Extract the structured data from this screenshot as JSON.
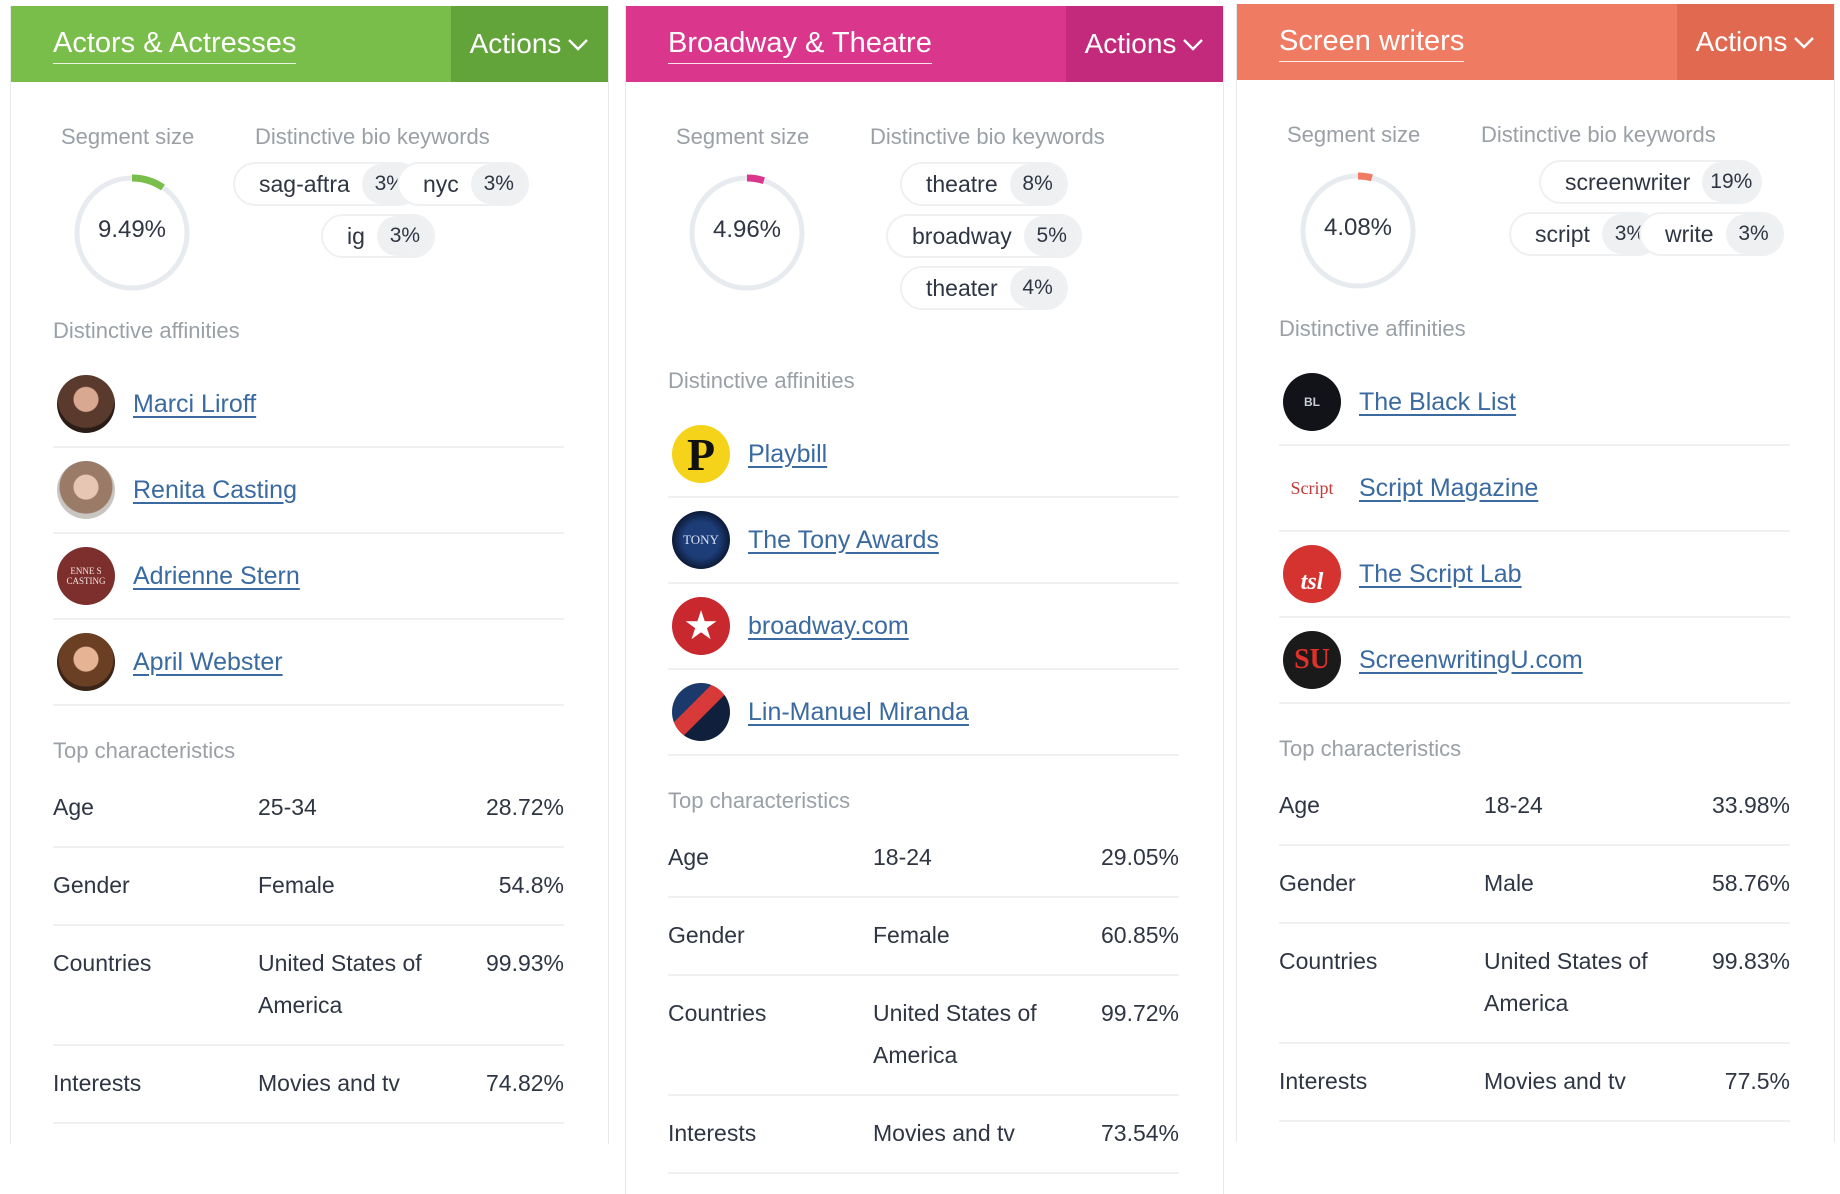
{
  "panels": [
    {
      "title": "Actors & Actresses",
      "actions_label": "Actions",
      "accent": "#79bd4b",
      "accent_dark": "#62a43a",
      "segment_label": "Segment size",
      "segment_value": "9.49%",
      "segment_fraction": 0.0949,
      "keywords_label": "Distinctive bio keywords",
      "keywords": [
        {
          "text": "sag-aftra",
          "pct": "3%"
        },
        {
          "text": "nyc",
          "pct": "3%"
        },
        {
          "text": "ig",
          "pct": "3%"
        }
      ],
      "affinities_label": "Distinctive affinities",
      "affinities": [
        {
          "name": "Marci Liroff",
          "icon": "person-avatar-icon"
        },
        {
          "name": "Renita Casting",
          "icon": "person-avatar-icon"
        },
        {
          "name": "Adrienne Stern",
          "icon": "casting-logo-icon",
          "icon_text": "ENNE S CASTING"
        },
        {
          "name": "April Webster",
          "icon": "person-avatar-icon"
        }
      ],
      "characteristics_label": "Top characteristics",
      "characteristics": [
        {
          "key": "Age",
          "value": "25-34",
          "pct": "28.72%"
        },
        {
          "key": "Gender",
          "value": "Female",
          "pct": "54.8%"
        },
        {
          "key": "Countries",
          "value": "United States of America",
          "pct": "99.93%"
        },
        {
          "key": "Interests",
          "value": "Movies and tv",
          "pct": "74.82%"
        }
      ]
    },
    {
      "title": "Broadway & Theatre",
      "actions_label": "Actions",
      "accent": "#d9368c",
      "accent_dark": "#c32a7b",
      "segment_label": "Segment size",
      "segment_value": "4.96%",
      "segment_fraction": 0.0496,
      "keywords_label": "Distinctive bio keywords",
      "keywords": [
        {
          "text": "theatre",
          "pct": "8%"
        },
        {
          "text": "broadway",
          "pct": "5%"
        },
        {
          "text": "theater",
          "pct": "4%"
        }
      ],
      "affinities_label": "Distinctive affinities",
      "affinities": [
        {
          "name": "Playbill",
          "icon": "playbill-logo-icon",
          "icon_text": "P"
        },
        {
          "name": "The Tony Awards",
          "icon": "tony-awards-logo-icon",
          "icon_text": "TONY"
        },
        {
          "name": "broadway.com",
          "icon": "star-logo-icon",
          "icon_text": "★"
        },
        {
          "name": "Lin-Manuel Miranda",
          "icon": "person-avatar-icon"
        }
      ],
      "characteristics_label": "Top characteristics",
      "characteristics": [
        {
          "key": "Age",
          "value": "18-24",
          "pct": "29.05%"
        },
        {
          "key": "Gender",
          "value": "Female",
          "pct": "60.85%"
        },
        {
          "key": "Countries",
          "value": "United States of America",
          "pct": "99.72%"
        },
        {
          "key": "Interests",
          "value": "Movies and tv",
          "pct": "73.54%"
        }
      ]
    },
    {
      "title": "Screen writers",
      "actions_label": "Actions",
      "accent": "#ef7b63",
      "accent_dark": "#e06950",
      "segment_label": "Segment size",
      "segment_value": "4.08%",
      "segment_fraction": 0.0408,
      "keywords_label": "Distinctive bio keywords",
      "keywords": [
        {
          "text": "screenwriter",
          "pct": "19%"
        },
        {
          "text": "script",
          "pct": "3%"
        },
        {
          "text": "write",
          "pct": "3%"
        }
      ],
      "affinities_label": "Distinctive affinities",
      "affinities": [
        {
          "name": "The Black List",
          "icon": "black-list-logo-icon",
          "icon_text": "BL"
        },
        {
          "name": "Script Magazine",
          "icon": "script-magazine-logo-icon",
          "icon_text": "Script"
        },
        {
          "name": "The Script Lab",
          "icon": "script-lab-logo-icon",
          "icon_text": "tsl"
        },
        {
          "name": "ScreenwritingU.com",
          "icon": "screenwritingu-logo-icon",
          "icon_text": "SU"
        }
      ],
      "characteristics_label": "Top characteristics",
      "characteristics": [
        {
          "key": "Age",
          "value": "18-24",
          "pct": "33.98%"
        },
        {
          "key": "Gender",
          "value": "Male",
          "pct": "58.76%"
        },
        {
          "key": "Countries",
          "value": "United States of America",
          "pct": "99.83%"
        },
        {
          "key": "Interests",
          "value": "Movies and tv",
          "pct": "77.5%"
        }
      ]
    }
  ]
}
